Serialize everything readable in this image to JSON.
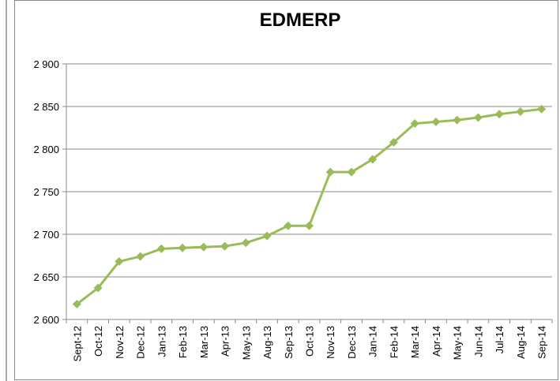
{
  "chart_data": {
    "type": "line",
    "title": "EDMERP",
    "categories": [
      "Sept-12",
      "Oct-12",
      "Nov-12",
      "Dec-12",
      "Jan-13",
      "Feb-13",
      "Mar-13",
      "Apr-13",
      "May-13",
      "Aug-13",
      "Sep-13",
      "Oct-13",
      "Nov-13",
      "Dec-13",
      "Jan-14",
      "Feb-14",
      "Mar-14",
      "Apr-14",
      "May-14",
      "Jun-14",
      "Jul-14",
      "Aug-14",
      "Sep-14"
    ],
    "series": [
      {
        "name": "EDMERP",
        "color": "#9bbb59",
        "values": [
          2618,
          2637,
          2668,
          2674,
          2683,
          2684,
          2685,
          2686,
          2690,
          2698,
          2710,
          2710,
          2773,
          2773,
          2788,
          2808,
          2830,
          2832,
          2834,
          2837,
          2841,
          2844,
          2847
        ]
      }
    ],
    "ylim": [
      2600,
      2900
    ],
    "yticks": [
      {
        "value": 2600,
        "label": "2 600"
      },
      {
        "value": 2650,
        "label": "2 650"
      },
      {
        "value": 2700,
        "label": "2 700"
      },
      {
        "value": 2750,
        "label": "2 750"
      },
      {
        "value": 2800,
        "label": "2 800"
      },
      {
        "value": 2850,
        "label": "2 850"
      },
      {
        "value": 2900,
        "label": "2 900"
      }
    ],
    "grid": true
  }
}
